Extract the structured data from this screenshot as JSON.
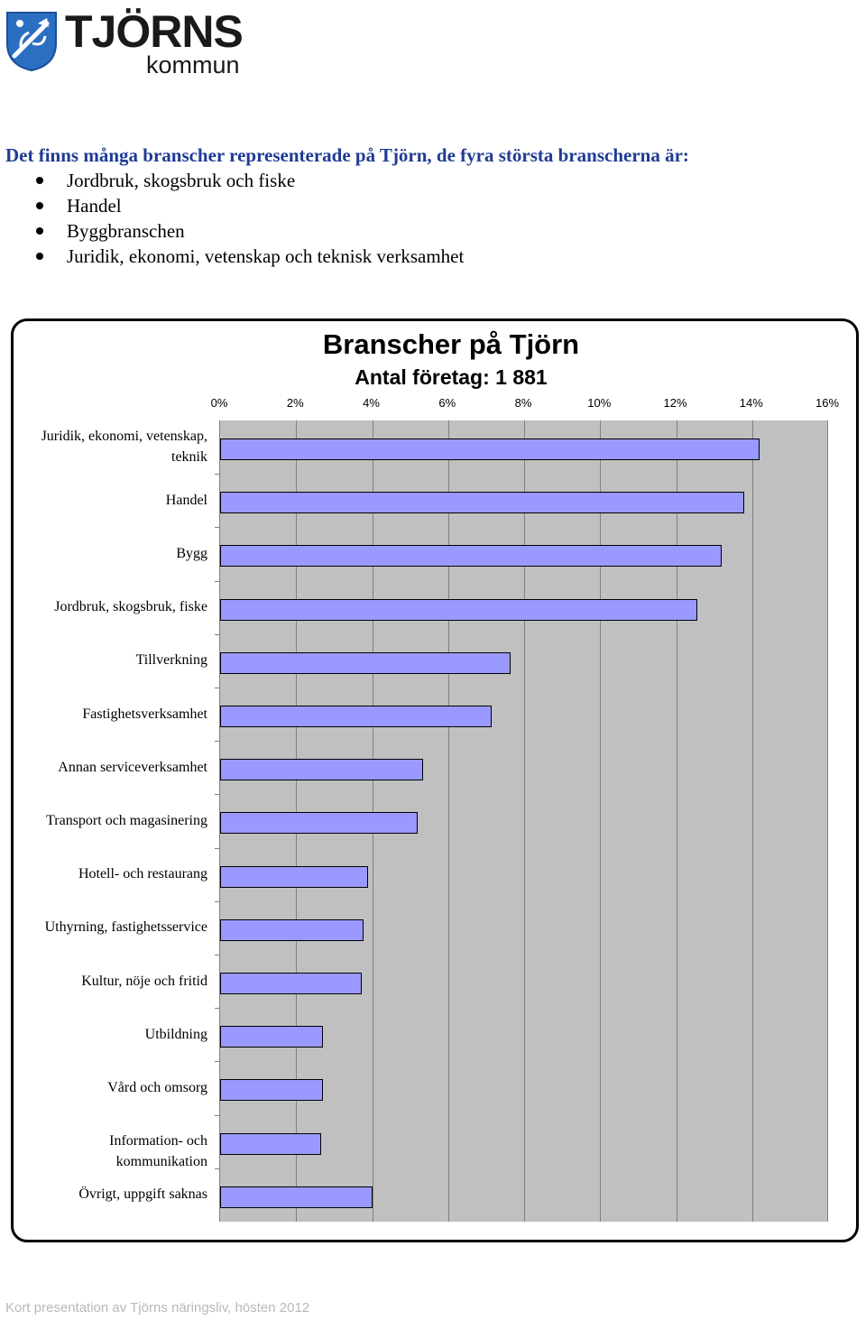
{
  "logo": {
    "name": "TJÖRNS",
    "sub": "kommun"
  },
  "intro": {
    "heading": "Det finns många branscher representerade på Tjörn, de fyra största branscherna är:",
    "items": [
      "Jordbruk, skogsbruk och fiske",
      "Handel",
      "Byggbranschen",
      "Juridik, ekonomi, vetenskap och teknisk verksamhet"
    ]
  },
  "chart_data": {
    "type": "bar",
    "orientation": "horizontal",
    "title": "Branscher på Tjörn",
    "subtitle": "Antal företag: 1 881",
    "xlim": [
      0,
      16
    ],
    "x_ticks": [
      "0%",
      "2%",
      "4%",
      "6%",
      "8%",
      "10%",
      "12%",
      "14%",
      "16%"
    ],
    "grid": true,
    "categories": [
      "Juridik, ekonomi, vetenskap, teknik",
      "Handel",
      "Bygg",
      "Jordbruk, skogsbruk, fiske",
      "Tillverkning",
      "Fastighetsverksamhet",
      "Annan serviceverksamhet",
      "Transport och magasinering",
      "Hotell- och restaurang",
      "Uthyrning, fastighetsservice",
      "Kultur, nöje och fritid",
      "Utbildning",
      "Vård och omsorg",
      "Information- och kommunikation",
      "Övrigt, uppgift saknas"
    ],
    "values": [
      14.2,
      13.8,
      13.2,
      12.55,
      7.65,
      7.15,
      5.35,
      5.2,
      3.9,
      3.78,
      3.72,
      2.7,
      2.7,
      2.65,
      4.0
    ],
    "colors": {
      "bar": "#9999ff",
      "plot_background": "#c0c0c0",
      "gridline": "#808080"
    }
  },
  "footer": {
    "text": "Kort presentation av Tjörns näringsliv, hösten 2012"
  }
}
